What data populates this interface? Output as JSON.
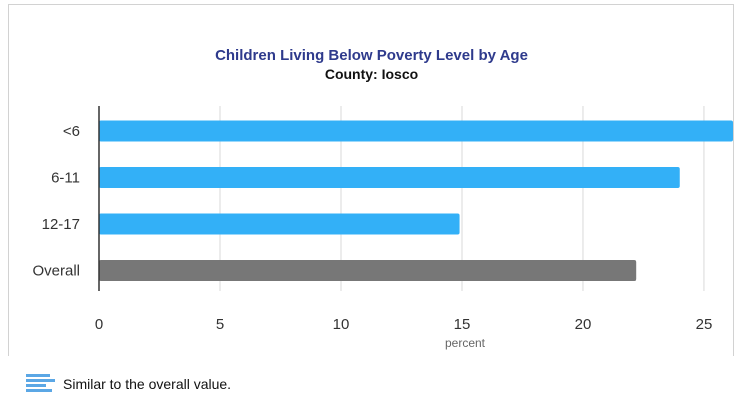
{
  "chart_data": {
    "type": "bar",
    "orientation": "horizontal",
    "title": "Children Living Below Poverty Level by Age",
    "subtitle": "County: Iosco",
    "xlabel": "percent",
    "ylabel": "",
    "categories": [
      "<6",
      "6-11",
      "12-17",
      "Overall"
    ],
    "values": [
      26.2,
      24.0,
      14.9,
      22.2
    ],
    "xlim": [
      0,
      26.2
    ],
    "xticks": [
      0,
      5,
      10,
      15,
      20,
      25
    ],
    "grid": "vertical",
    "colors": {
      "bars": [
        "#33b0f7",
        "#33b0f7",
        "#33b0f7",
        "#777777"
      ],
      "grid": "#d9d9d9",
      "axis": "#333333",
      "title": "#2e3a8c"
    }
  },
  "legend": {
    "icon": "similar-value-bars-icon",
    "label": "Similar to the overall value.",
    "color": "#5ba7e5"
  }
}
